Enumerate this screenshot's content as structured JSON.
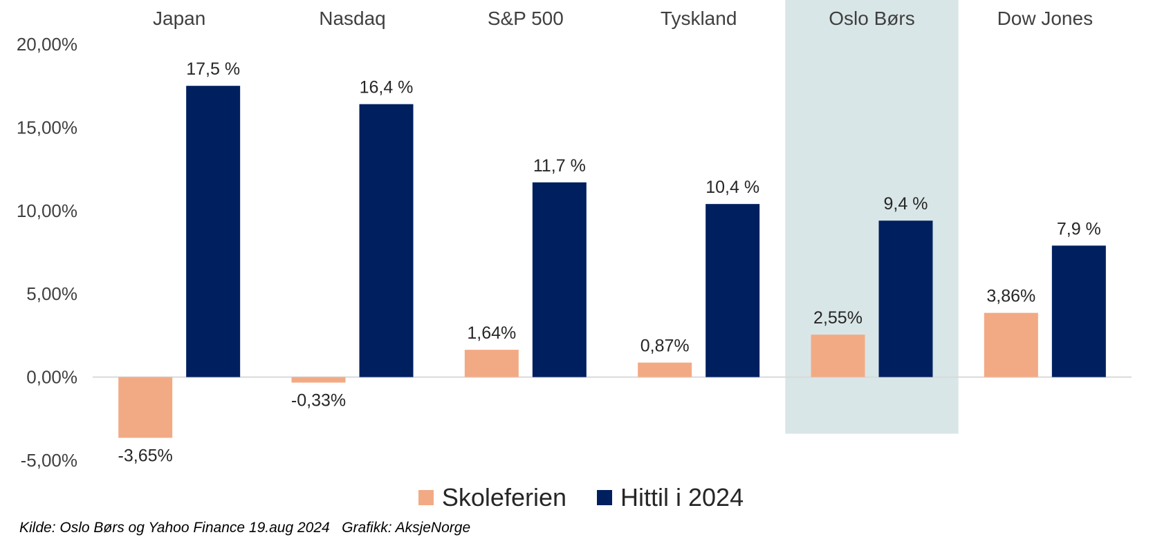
{
  "chart_data": {
    "type": "bar",
    "categories": [
      "Japan",
      "Nasdaq",
      "S&P 500",
      "Tyskland",
      "Oslo Børs",
      "Dow Jones"
    ],
    "series": [
      {
        "name": "Skoleferien",
        "color": "#F2AA84",
        "values": [
          -3.65,
          -0.33,
          1.64,
          0.87,
          2.55,
          3.86
        ],
        "labels": [
          "-3,65%",
          "-0,33%",
          "1,64%",
          "0,87%",
          "2,55%",
          "3,86%"
        ]
      },
      {
        "name": "Hittil i 2024",
        "color": "#001F5F",
        "values": [
          17.5,
          16.4,
          11.7,
          10.4,
          9.4,
          7.9
        ],
        "labels": [
          "17,5 %",
          "16,4 %",
          "11,7 %",
          "10,4 %",
          "9,4 %",
          "7,9 %"
        ]
      }
    ],
    "y_ticks": [
      20,
      15,
      10,
      5,
      0,
      -5
    ],
    "y_tick_labels": [
      "20,00%",
      "15,00%",
      "10,00%",
      "5,00%",
      "0,00%",
      "-5,00%"
    ],
    "ylim": [
      -5,
      20
    ],
    "highlight_category": "Oslo Børs",
    "highlight_color": "#D9E6E7",
    "axis_line_color": "#D9D9D9",
    "legend_position": "bottom",
    "category_labels_position": "top",
    "grid": false,
    "title": "",
    "xlabel": "",
    "ylabel": ""
  },
  "footer": {
    "source": "Kilde: Oslo Børs og Yahoo Finance 19.aug 2024   Grafikk: AksjeNorge"
  }
}
